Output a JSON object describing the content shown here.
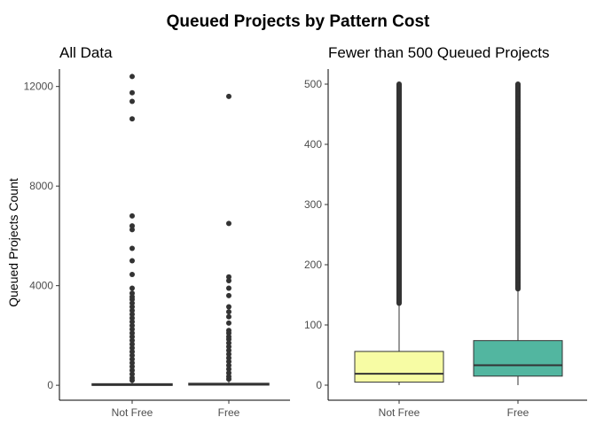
{
  "title": "Queued Projects by Pattern Cost",
  "colors": {
    "box_left": "#ffffff",
    "box_not_free": "#f7fca4",
    "box_free": "#52b6a0",
    "outlier": "#333333",
    "axis": "#000000",
    "tick_text": "#4d4d4d"
  },
  "chart_data": [
    {
      "type": "box",
      "panel_title": "All Data",
      "categories": [
        "Not Free",
        "Free"
      ],
      "ylabel": "Queued Projects Count",
      "xlabel": "",
      "ylim": [
        -600,
        12700
      ],
      "yticks": [
        0,
        4000,
        8000,
        12000
      ],
      "ytick_labels": [
        "0",
        "4000",
        "8000",
        "12000"
      ],
      "grid": false,
      "boxes": [
        {
          "category": "Not Free",
          "q1": 5,
          "median": 20,
          "q3": 55,
          "whisker_low": 0,
          "whisker_high": 130,
          "outliers": [
            12400,
            11750,
            11400,
            10700,
            6800,
            6400,
            6250,
            5500,
            5000,
            4450,
            3900,
            3700,
            3550,
            3450,
            3300,
            3150,
            3000,
            2850,
            2700,
            2550,
            2400,
            2250,
            2100,
            1950,
            1800,
            1650,
            1500,
            1350,
            1200,
            1050,
            900,
            750,
            600,
            450,
            300,
            200
          ]
        },
        {
          "category": "Free",
          "q1": 15,
          "median": 33,
          "q3": 73,
          "whisker_low": 0,
          "whisker_high": 160,
          "outliers": [
            11600,
            6500,
            4350,
            4200,
            3900,
            3600,
            3150,
            2950,
            2750,
            2500,
            2200,
            2100,
            1950,
            1850,
            1700,
            1550,
            1400,
            1250,
            1100,
            950,
            800,
            650,
            500,
            350,
            250
          ]
        }
      ]
    },
    {
      "type": "box",
      "panel_title": "Fewer than 500 Queued Projects",
      "categories": [
        "Not Free",
        "Free"
      ],
      "ylabel": "",
      "xlabel": "",
      "ylim": [
        -25,
        525
      ],
      "yticks": [
        0,
        100,
        200,
        300,
        400,
        500
      ],
      "ytick_labels": [
        "0",
        "100",
        "200",
        "300",
        "400",
        "500"
      ],
      "grid": false,
      "boxes": [
        {
          "category": "Not Free",
          "q1": 5,
          "median": 19,
          "q3": 56,
          "whisker_low": 0,
          "whisker_high": 134,
          "outlier_band": [
            136,
            500
          ]
        },
        {
          "category": "Free",
          "q1": 15,
          "median": 33,
          "q3": 74,
          "whisker_low": 0,
          "whisker_high": 158,
          "outlier_band": [
            160,
            500
          ],
          "outliers": [
            162,
            168,
            175,
            182,
            190,
            198,
            205,
            213,
            220,
            228,
            236,
            244,
            252,
            260,
            268,
            276,
            284,
            292,
            300,
            308,
            316,
            324,
            333,
            342,
            351,
            360,
            369,
            378,
            387,
            396,
            405,
            414,
            423,
            432,
            441,
            450,
            459,
            468,
            476,
            484,
            492,
            499
          ]
        }
      ]
    }
  ]
}
